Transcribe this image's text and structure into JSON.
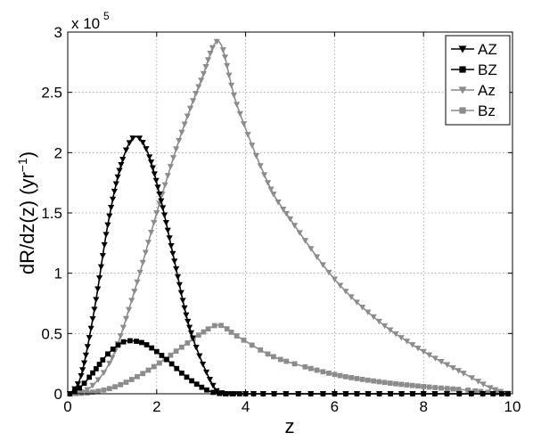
{
  "chart_data": {
    "type": "line",
    "xlabel": "z",
    "ylabel": "dR/dz(z) (yr",
    "ylabel_sup": "−1",
    "ylabel_tail": ")",
    "y_multiplier": "x 10",
    "y_multiplier_exp": "5",
    "xlim": [
      0,
      10
    ],
    "ylim": [
      0,
      300000
    ],
    "x_ticks": [
      "0",
      "2",
      "4",
      "6",
      "8",
      "10"
    ],
    "y_ticks": [
      "0",
      "0.5",
      "1",
      "1.5",
      "2",
      "2.5",
      "3"
    ],
    "grid": true,
    "legend_position": "top-right",
    "series": [
      {
        "name": "AZ",
        "color": "#000000",
        "marker": "triangle-down",
        "x": [
          0.05,
          0.3,
          0.6,
          0.9,
          1.2,
          1.5,
          1.8,
          2.1,
          2.4,
          2.7,
          3.0,
          3.3,
          3.5,
          4.0,
          6.0,
          8.0,
          9.9
        ],
        "y": [
          0,
          15000,
          70000,
          140000,
          190000,
          213000,
          200000,
          160000,
          110000,
          60000,
          28000,
          5000,
          500,
          0,
          0,
          0,
          0
        ]
      },
      {
        "name": "BZ",
        "color": "#000000",
        "marker": "square",
        "x": [
          0.05,
          0.3,
          0.6,
          0.9,
          1.2,
          1.4,
          1.7,
          2.0,
          2.3,
          2.6,
          2.9,
          3.2,
          3.5,
          4.0,
          6.0,
          8.0,
          9.9
        ],
        "y": [
          0,
          6000,
          19000,
          33000,
          42000,
          44000,
          42000,
          35000,
          26000,
          16000,
          8000,
          2000,
          0,
          0,
          0,
          0,
          0
        ]
      },
      {
        "name": "Az",
        "color": "#8c8c8c",
        "marker": "triangle-down",
        "x": [
          0.05,
          0.5,
          1.0,
          1.5,
          2.0,
          2.5,
          3.0,
          3.4,
          3.8,
          4.5,
          5.0,
          6.0,
          7.0,
          8.0,
          9.0,
          9.5,
          9.9
        ],
        "y": [
          0,
          5000,
          30000,
          85000,
          150000,
          210000,
          260000,
          292000,
          240000,
          175000,
          145000,
          95000,
          60000,
          35000,
          15000,
          5000,
          0
        ]
      },
      {
        "name": "Bz",
        "color": "#8c8c8c",
        "marker": "square",
        "x": [
          0.05,
          0.5,
          1.0,
          1.5,
          2.0,
          2.5,
          3.0,
          3.4,
          3.8,
          4.5,
          5.0,
          6.0,
          7.0,
          8.0,
          9.0,
          9.5,
          9.9
        ],
        "y": [
          0,
          1000,
          5000,
          13000,
          24000,
          37000,
          50000,
          57000,
          48000,
          33000,
          26000,
          16000,
          10000,
          6000,
          3000,
          1000,
          0
        ]
      }
    ]
  }
}
